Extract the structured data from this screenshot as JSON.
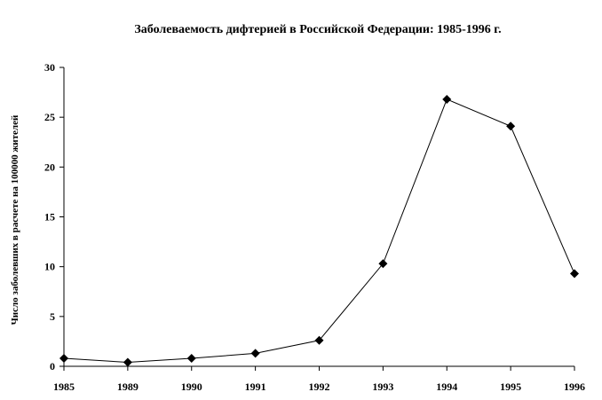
{
  "chart_data": {
    "type": "line",
    "title": "Заболеваемость дифтерией в Российской Федерации: 1985-1996 г.",
    "xlabel": "",
    "ylabel": "Число заболевших в расчете на 100000 жителей",
    "categories": [
      "1985",
      "1989",
      "1990",
      "1991",
      "1992",
      "1993",
      "1994",
      "1995",
      "1996"
    ],
    "series": [
      {
        "values": [
          0.8,
          0.4,
          0.8,
          1.3,
          2.6,
          10.3,
          26.8,
          24.1,
          9.3
        ]
      }
    ],
    "ylim": [
      0,
      30
    ],
    "yticks": [
      0,
      5,
      10,
      15,
      20,
      25,
      30
    ],
    "grid": false,
    "legend": "none",
    "line_color": "#000000",
    "marker": "diamond",
    "marker_color": "#000000"
  }
}
